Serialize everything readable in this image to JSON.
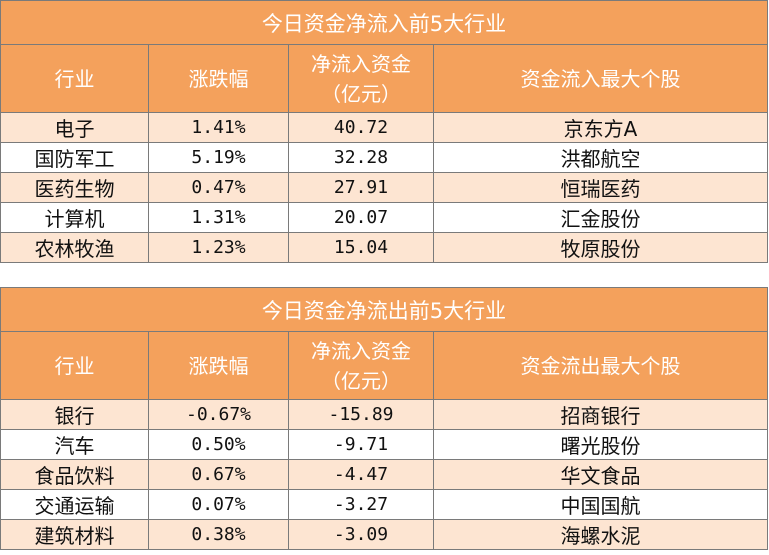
{
  "inflow": {
    "title": "今日资金净流入前5大行业",
    "headers": [
      "行业",
      "涨跌幅",
      "净流入资金\n（亿元）",
      "资金流入最大个股"
    ],
    "rows": [
      [
        "电子",
        "1.41%",
        "40.72",
        "京东方A"
      ],
      [
        "国防军工",
        "5.19%",
        "32.28",
        "洪都航空"
      ],
      [
        "医药生物",
        "0.47%",
        "27.91",
        "恒瑞医药"
      ],
      [
        "计算机",
        "1.31%",
        "20.07",
        "汇金股份"
      ],
      [
        "农林牧渔",
        "1.23%",
        "15.04",
        "牧原股份"
      ]
    ]
  },
  "outflow": {
    "title": "今日资金净流出前5大行业",
    "headers": [
      "行业",
      "涨跌幅",
      "净流入资金\n（亿元）",
      "资金流出最大个股"
    ],
    "rows": [
      [
        "银行",
        "-0.67%",
        "-15.89",
        "招商银行"
      ],
      [
        "汽车",
        "0.50%",
        "-9.71",
        "曙光股份"
      ],
      [
        "食品饮料",
        "0.67%",
        "-4.47",
        "华文食品"
      ],
      [
        "交通运输",
        "0.07%",
        "-3.27",
        "中国国航"
      ],
      [
        "建筑材料",
        "0.38%",
        "-3.09",
        "海螺水泥"
      ]
    ]
  }
}
